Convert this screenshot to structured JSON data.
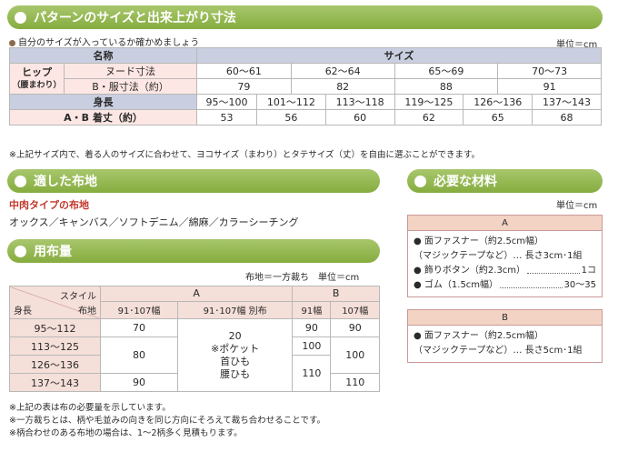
{
  "sections": {
    "size": "パターンのサイズと出来上がり寸法",
    "fabric": "適した布地",
    "yardage": "用布量",
    "materials": "必要な材料"
  },
  "size_intro": "自分のサイズが入っているか確かめましょう",
  "unit": "単位＝cm",
  "size_table": {
    "name_header": "名称",
    "size_header": "サイズ",
    "hip_label": "ヒップ",
    "hip_sub": "（腰まわり）",
    "nude_label": "ヌード寸法",
    "nude": [
      "60～61",
      "62～64",
      "65～69",
      "70～73"
    ],
    "garment_label": "B・服寸法（約）",
    "garment": [
      "79",
      "82",
      "88",
      "91"
    ],
    "height_label": "身長",
    "heights": [
      "95～100",
      "101～112",
      "113～118",
      "119～125",
      "126～136",
      "137～143"
    ],
    "length_label": "A・B 着丈（約）",
    "lengths": [
      "53",
      "56",
      "60",
      "62",
      "65",
      "68"
    ]
  },
  "size_note": "※上記サイズ内で、着る人のサイズに合わせて、ヨコサイズ（まわり）とタテサイズ（丈）を自由に選ぶことができます。",
  "fabric_type": "中肉タイプの布地",
  "fabric_list": "オックス／キャンバス／ソフトデニム／綿麻／カラーシーチング",
  "yardage_note": "布地＝一方裁ち　単位＝cm",
  "yardage_table": {
    "style_label": "スタイル",
    "height_label": "身長",
    "fabric_label": "布地",
    "col_a": "A",
    "col_b": "B",
    "a_width": "91･107幅",
    "a_extra": "91･107幅 別布",
    "b_w91": "91幅",
    "b_w107": "107幅",
    "rows": [
      "95～112",
      "113～125",
      "126～136",
      "137～143"
    ],
    "a_vals": [
      "70",
      "80",
      "90"
    ],
    "extra": [
      "20",
      "※ポケット",
      "首ひも",
      "腰ひも"
    ],
    "b91": [
      "90",
      "100",
      "110"
    ],
    "b107": [
      "90",
      "100",
      "110"
    ]
  },
  "yardage_notes": [
    "※上記の表は布の必要量を示しています。",
    "※一方裁ちとは、柄や毛並みの向きを同じ方向にそろえて裁ち合わせることです。",
    "※柄合わせのある布地の場合は、1～2柄多く見積もります。"
  ],
  "materials": {
    "unit": "単位＝cm",
    "a_label": "A",
    "a_items": [
      {
        "l": "● 面ファスナー（約2.5cm幅）",
        "r": ""
      },
      {
        "l": "（マジックテープなど）… 長さ3cm･1組",
        "r": ""
      },
      {
        "l": "● 飾りボタン（約2.3cm）",
        "r": "1コ"
      },
      {
        "l": "● ゴム（1.5cm幅）",
        "r": "30～35"
      }
    ],
    "b_label": "B",
    "b_items": [
      {
        "l": "● 面ファスナー（約2.5cm幅）",
        "r": ""
      },
      {
        "l": "（マジックテープなど）… 長さ5cm･1組",
        "r": ""
      }
    ]
  }
}
